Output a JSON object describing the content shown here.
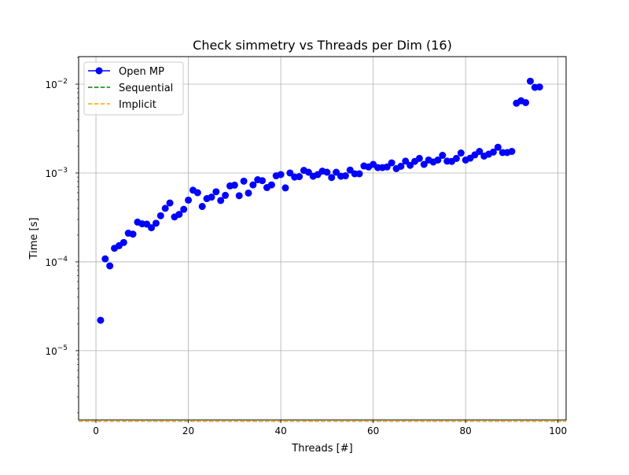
{
  "chart_data": {
    "type": "scatter",
    "title": "Check simmetry vs Threads per Dim (16)",
    "xlabel": "Threads [#]",
    "ylabel": "Time [s]",
    "xlim": [
      -3.75,
      101.75
    ],
    "ylim_log10": [
      -5.78,
      -1.69
    ],
    "yscale": "log",
    "grid": true,
    "legend_position": "top-left",
    "x_ticks": [
      {
        "value": 0,
        "label": "0"
      },
      {
        "value": 20,
        "label": "20"
      },
      {
        "value": 40,
        "label": "40"
      },
      {
        "value": 60,
        "label": "60"
      },
      {
        "value": 80,
        "label": "80"
      },
      {
        "value": 100,
        "label": "100"
      }
    ],
    "y_ticks": [
      {
        "exp": -2,
        "base": "10",
        "exponent": "−2"
      },
      {
        "exp": -3,
        "base": "10",
        "exponent": "−3"
      },
      {
        "exp": -4,
        "base": "10",
        "exponent": "−4"
      },
      {
        "exp": -5,
        "base": "10",
        "exponent": "−5"
      }
    ],
    "series": [
      {
        "name": "Open MP",
        "style": "markers",
        "color": "#0000ff",
        "x": [
          1,
          2,
          3,
          4,
          5,
          6,
          7,
          8,
          9,
          10,
          11,
          12,
          13,
          14,
          15,
          16,
          17,
          18,
          19,
          20,
          21,
          22,
          23,
          24,
          25,
          26,
          27,
          28,
          29,
          30,
          31,
          32,
          33,
          34,
          35,
          36,
          37,
          38,
          39,
          40,
          41,
          42,
          43,
          44,
          45,
          46,
          47,
          48,
          49,
          50,
          51,
          52,
          53,
          54,
          55,
          56,
          57,
          58,
          59,
          60,
          61,
          62,
          63,
          64,
          65,
          66,
          67,
          68,
          69,
          70,
          71,
          72,
          73,
          74,
          75,
          76,
          77,
          78,
          79,
          80,
          81,
          82,
          83,
          84,
          85,
          86,
          87,
          88,
          89,
          90,
          91,
          92,
          93,
          94,
          95,
          96
        ],
        "y": [
          2.2e-05,
          0.000108,
          9e-05,
          0.000142,
          0.000152,
          0.000165,
          0.00021,
          0.000205,
          0.00028,
          0.000268,
          0.000266,
          0.000242,
          0.000272,
          0.00033,
          0.0004,
          0.00046,
          0.00032,
          0.000342,
          0.00039,
          0.000495,
          0.00064,
          0.0006,
          0.00042,
          0.000515,
          0.000535,
          0.000615,
          0.00049,
          0.00056,
          0.000715,
          0.00073,
          0.000555,
          0.00081,
          0.000595,
          0.000735,
          0.00084,
          0.00082,
          0.000685,
          0.000735,
          0.00093,
          0.00096,
          0.00068,
          0.001,
          0.0009,
          0.00091,
          0.00107,
          0.00102,
          0.00092,
          0.00096,
          0.00105,
          0.00102,
          0.00089,
          0.00102,
          0.00092,
          0.00093,
          0.00108,
          0.00098,
          0.00098,
          0.0012,
          0.00117,
          0.00125,
          0.00115,
          0.00115,
          0.00117,
          0.0013,
          0.00112,
          0.00119,
          0.00136,
          0.00122,
          0.00135,
          0.00146,
          0.00125,
          0.0014,
          0.00133,
          0.0014,
          0.00158,
          0.00136,
          0.00135,
          0.00146,
          0.00168,
          0.0014,
          0.00147,
          0.0016,
          0.00175,
          0.00155,
          0.00163,
          0.00172,
          0.00195,
          0.0017,
          0.0017,
          0.00175,
          0.0061,
          0.0065,
          0.0062,
          0.0108,
          0.0092,
          0.0093
        ]
      },
      {
        "name": "Sequential",
        "style": "dashed-hline",
        "color": "#008000",
        "y": 1.6e-06
      },
      {
        "name": "Implicit",
        "style": "dashed-hline",
        "color": "#ffa500",
        "y": 1.6e-06
      }
    ]
  }
}
